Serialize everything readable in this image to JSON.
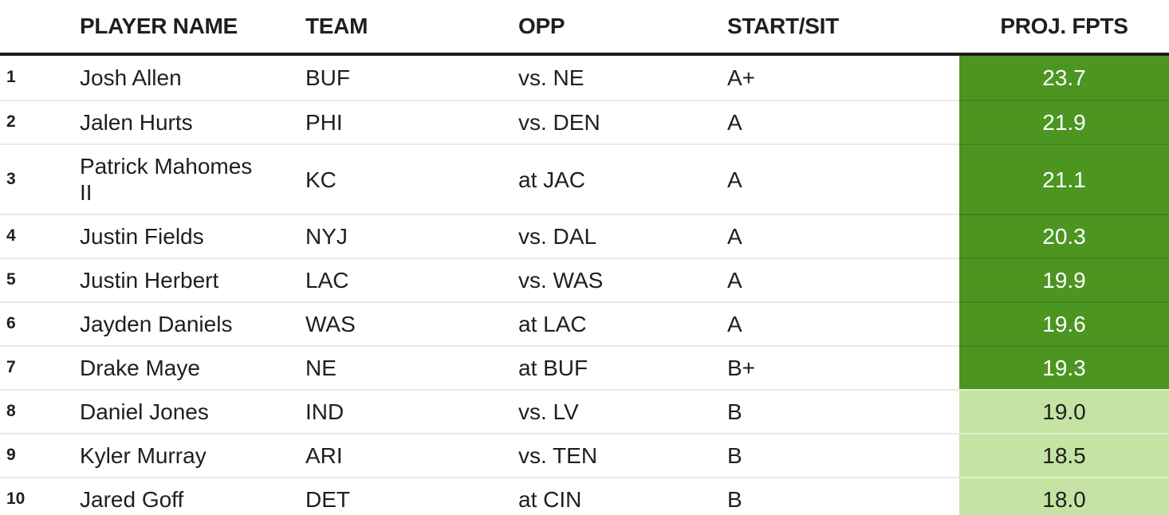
{
  "colors": {
    "text": "#1F1F1F",
    "row_divider": "#E9E9E9",
    "header_divider": "#1C1C1C",
    "proj_dark_bg": "#4C9521",
    "proj_light_bg": "#C5E3A2",
    "proj_dark_text": "#FFFFFF",
    "proj_light_text": "#1F1F1F"
  },
  "header": {
    "rank_label": "",
    "player_label": "PLAYER NAME",
    "team_label": "TEAM",
    "opp_label": "OPP",
    "startsit_label": "START/SIT",
    "proj_label": "PROJ. FPTS"
  },
  "rows": [
    {
      "rank": "1",
      "player": "Josh Allen",
      "team": "BUF",
      "opp": "vs. NE",
      "start_sit": "A+",
      "proj_fpts": "23.7",
      "proj_shade": "dark"
    },
    {
      "rank": "2",
      "player": "Jalen Hurts",
      "team": "PHI",
      "opp": "vs. DEN",
      "start_sit": "A",
      "proj_fpts": "21.9",
      "proj_shade": "dark"
    },
    {
      "rank": "3",
      "player": "Patrick Mahomes II",
      "team": "KC",
      "opp": "at JAC",
      "start_sit": "A",
      "proj_fpts": "21.1",
      "proj_shade": "dark"
    },
    {
      "rank": "4",
      "player": "Justin Fields",
      "team": "NYJ",
      "opp": "vs. DAL",
      "start_sit": "A",
      "proj_fpts": "20.3",
      "proj_shade": "dark"
    },
    {
      "rank": "5",
      "player": "Justin Herbert",
      "team": "LAC",
      "opp": "vs. WAS",
      "start_sit": "A",
      "proj_fpts": "19.9",
      "proj_shade": "dark"
    },
    {
      "rank": "6",
      "player": "Jayden Daniels",
      "team": "WAS",
      "opp": "at LAC",
      "start_sit": "A",
      "proj_fpts": "19.6",
      "proj_shade": "dark"
    },
    {
      "rank": "7",
      "player": "Drake Maye",
      "team": "NE",
      "opp": "at BUF",
      "start_sit": "B+",
      "proj_fpts": "19.3",
      "proj_shade": "dark"
    },
    {
      "rank": "8",
      "player": "Daniel Jones",
      "team": "IND",
      "opp": "vs. LV",
      "start_sit": "B",
      "proj_fpts": "19.0",
      "proj_shade": "light"
    },
    {
      "rank": "9",
      "player": "Kyler Murray",
      "team": "ARI",
      "opp": "vs. TEN",
      "start_sit": "B",
      "proj_fpts": "18.5",
      "proj_shade": "light"
    },
    {
      "rank": "10",
      "player": "Jared Goff",
      "team": "DET",
      "opp": "at CIN",
      "start_sit": "B",
      "proj_fpts": "18.0",
      "proj_shade": "light"
    }
  ]
}
